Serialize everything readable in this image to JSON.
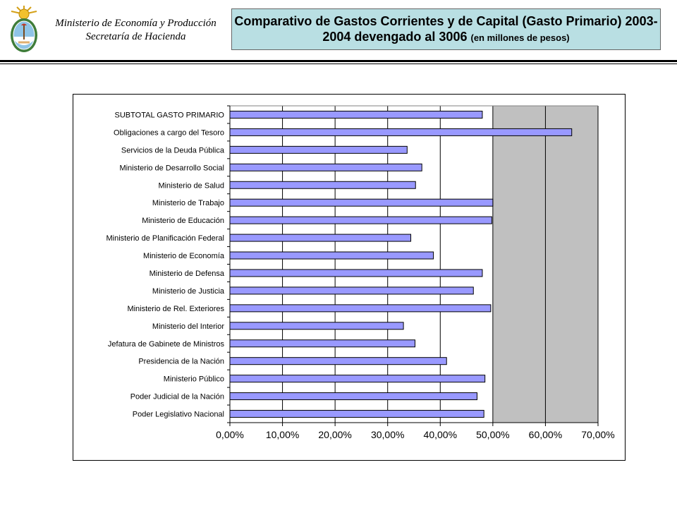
{
  "header": {
    "ministry_line1": "Ministerio de Economía y Producción",
    "ministry_line2": "Secretaría de Hacienda",
    "title_main": "Comparativo de Gastos Corrientes y de Capital (Gasto Primario) 2003-2004 devengado al 3006",
    "title_unit": "(en millones de pesos)"
  },
  "colors": {
    "bar_fill": "#9999ff",
    "plot_background": "#c0c0c0",
    "title_background": "#b9dfe3"
  },
  "chart_data": {
    "type": "bar",
    "orientation": "horizontal",
    "categories": [
      "SUBTOTAL GASTO PRIMARIO",
      "Obligaciones a cargo del Tesoro",
      "Servicios de la Deuda Pública",
      "Ministerio de Desarrollo Social",
      "Ministerio de Salud",
      "Ministerio de Trabajo",
      "Ministerio de Educación",
      "Ministerio de Planificación Federal",
      "Ministerio de Economía",
      "Ministerio de Defensa",
      "Ministerio de Justicia",
      "Ministerio de Rel. Exteriores",
      "Ministerio del Interior",
      "Jefatura de Gabinete de Ministros",
      "Presidencia de la Nación",
      "Ministerio Público",
      "Poder Judicial de la Nación",
      "Poder Legislativo Nacional"
    ],
    "values": [
      48.0,
      65.0,
      33.7,
      36.5,
      35.3,
      50.0,
      49.8,
      34.4,
      38.7,
      48.0,
      46.3,
      49.6,
      33.0,
      35.2,
      41.2,
      48.5,
      47.0,
      48.3
    ],
    "xlim": [
      0,
      70
    ],
    "x_ticks": [
      "0,00%",
      "10,00%",
      "20,00%",
      "30,00%",
      "40,00%",
      "50,00%",
      "60,00%",
      "70,00%"
    ],
    "x_tick_values": [
      0,
      10,
      20,
      30,
      40,
      50,
      60,
      70
    ],
    "grid": true,
    "legend": "none"
  }
}
